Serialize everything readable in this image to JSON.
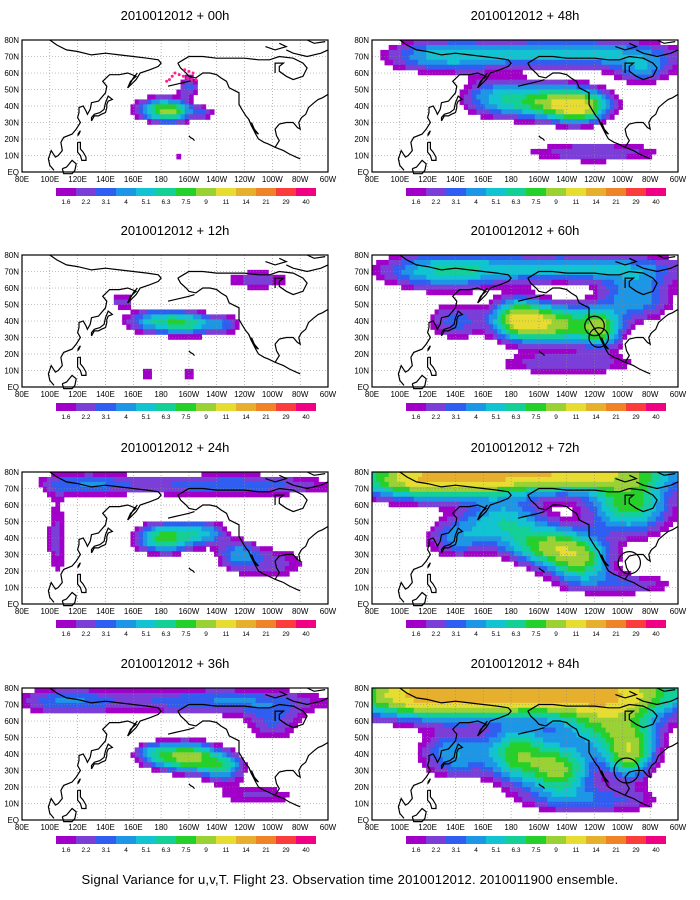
{
  "figure_caption": "Signal Variance for u,v,T. Flight 23. Observation time 2010012012. 2010011900 ensemble.",
  "palette": {
    "land_outline": "#000000",
    "grid": "#888888",
    "box": "#000000",
    "level_colors": [
      "#a000c8",
      "#7b3fd8",
      "#2f5ef0",
      "#1e96e6",
      "#12c3d2",
      "#14cf96",
      "#26d02a",
      "#9ad236",
      "#e6dc32",
      "#e6af2d",
      "#f08228",
      "#fa3c3c",
      "#f00082"
    ]
  },
  "chart_data": [
    {
      "type": "heatmap",
      "title": "2010012012 + 00h",
      "x_tick_labels": [
        "80E",
        "100E",
        "120E",
        "140E",
        "160E",
        "180",
        "160W",
        "140W",
        "120W",
        "100W",
        "80W",
        "60W"
      ],
      "y_tick_labels": [
        "EQ",
        "10N",
        "20N",
        "30N",
        "40N",
        "50N",
        "60N",
        "70N",
        "80N"
      ],
      "colorbar_labels": [
        "1.6",
        "2.2",
        "3.1",
        "4",
        "5.1",
        "6.3",
        "7.5",
        "9",
        "11",
        "14",
        "21",
        "29",
        "40"
      ],
      "grid": "dotted",
      "blobs": [
        {
          "lon": 180,
          "lat": 38,
          "slon": 13,
          "slat": 5,
          "amp": 6.5
        },
        {
          "lon": -172,
          "lat": 36,
          "slon": 9,
          "slat": 4,
          "amp": 4.5
        },
        {
          "lon": -160,
          "lat": 52,
          "slon": 6,
          "slat": 5,
          "amp": 3.2
        },
        {
          "lon": -168,
          "lat": 10,
          "slon": 2,
          "slat": 2,
          "amp": 2.2
        },
        {
          "lon": -150,
          "lat": 36,
          "slon": 6,
          "slat": 3,
          "amp": 3
        }
      ]
    },
    {
      "type": "heatmap",
      "title": "2010012012 + 48h",
      "x_tick_labels": [
        "80E",
        "100E",
        "120E",
        "140E",
        "160E",
        "180",
        "160W",
        "140W",
        "120W",
        "100W",
        "80W",
        "60W"
      ],
      "y_tick_labels": [
        "EQ",
        "10N",
        "20N",
        "30N",
        "40N",
        "50N",
        "60N",
        "70N",
        "80N"
      ],
      "colorbar_labels": [
        "1.6",
        "2.2",
        "3.1",
        "4",
        "5.1",
        "6.3",
        "7.5",
        "9",
        "11",
        "14",
        "21",
        "29",
        "40"
      ],
      "grid": "dotted",
      "blobs": [
        {
          "lon": -145,
          "lat": 42,
          "slon": 22,
          "slat": 7,
          "amp": 10
        },
        {
          "lon": -130,
          "lat": 38,
          "slon": 12,
          "slat": 6,
          "amp": 6
        },
        {
          "lon": 170,
          "lat": 45,
          "slon": 18,
          "slat": 8,
          "amp": 5
        },
        {
          "lon": -140,
          "lat": 72,
          "slon": 55,
          "slat": 6,
          "amp": 6
        },
        {
          "lon": 130,
          "lat": 70,
          "slon": 28,
          "slat": 7,
          "amp": 4.5
        },
        {
          "lon": -120,
          "lat": 12,
          "slon": 40,
          "slat": 5,
          "amp": 3
        },
        {
          "lon": -85,
          "lat": 62,
          "slon": 15,
          "slat": 6,
          "amp": 4
        }
      ]
    },
    {
      "type": "heatmap",
      "title": "2010012012 + 12h",
      "x_tick_labels": [
        "80E",
        "100E",
        "120E",
        "140E",
        "160E",
        "180",
        "160W",
        "140W",
        "120W",
        "100W",
        "80W",
        "60W"
      ],
      "y_tick_labels": [
        "EQ",
        "10N",
        "20N",
        "30N",
        "40N",
        "50N",
        "60N",
        "70N",
        "80N"
      ],
      "colorbar_labels": [
        "1.6",
        "2.2",
        "3.1",
        "4",
        "5.1",
        "6.3",
        "7.5",
        "9",
        "11",
        "14",
        "21",
        "29",
        "40"
      ],
      "grid": "dotted",
      "blobs": [
        {
          "lon": 178,
          "lat": 40,
          "slon": 16,
          "slat": 5,
          "amp": 6
        },
        {
          "lon": -160,
          "lat": 38,
          "slon": 12,
          "slat": 5,
          "amp": 5
        },
        {
          "lon": -135,
          "lat": 38,
          "slon": 10,
          "slat": 4,
          "amp": 3.5
        },
        {
          "lon": 152,
          "lat": 52,
          "slon": 6,
          "slat": 3,
          "amp": 3
        },
        {
          "lon": -110,
          "lat": 65,
          "slon": 20,
          "slat": 5,
          "amp": 2.6
        },
        {
          "lon": 170,
          "lat": 8,
          "slon": 4,
          "slat": 2,
          "amp": 2.4
        },
        {
          "lon": -160,
          "lat": 8,
          "slon": 4,
          "slat": 2,
          "amp": 2.3
        }
      ]
    },
    {
      "type": "heatmap",
      "title": "2010012012 + 60h",
      "x_tick_labels": [
        "80E",
        "100E",
        "120E",
        "140E",
        "160E",
        "180",
        "160W",
        "140W",
        "120W",
        "100W",
        "80W",
        "60W"
      ],
      "y_tick_labels": [
        "EQ",
        "10N",
        "20N",
        "30N",
        "40N",
        "50N",
        "60N",
        "70N",
        "80N"
      ],
      "colorbar_labels": [
        "1.6",
        "2.2",
        "3.1",
        "4",
        "5.1",
        "6.3",
        "7.5",
        "9",
        "11",
        "14",
        "21",
        "29",
        "40"
      ],
      "grid": "dotted",
      "blobs": [
        {
          "lon": -150,
          "lat": 38,
          "slon": 22,
          "slat": 8,
          "amp": 10
        },
        {
          "lon": -175,
          "lat": 42,
          "slon": 12,
          "slat": 8,
          "amp": 8
        },
        {
          "lon": -115,
          "lat": 35,
          "slon": 10,
          "slat": 8,
          "amp": 7
        },
        {
          "lon": -140,
          "lat": 72,
          "slon": 60,
          "slat": 6,
          "amp": 5.5
        },
        {
          "lon": 130,
          "lat": 70,
          "slon": 30,
          "slat": 8,
          "amp": 5
        },
        {
          "lon": -90,
          "lat": 55,
          "slon": 18,
          "slat": 10,
          "amp": 5
        },
        {
          "lon": 140,
          "lat": 40,
          "slon": 15,
          "slat": 8,
          "amp": 3.5
        },
        {
          "lon": -140,
          "lat": 14,
          "slon": 40,
          "slat": 5,
          "amp": 3
        }
      ]
    },
    {
      "type": "heatmap",
      "title": "2010012012 + 24h",
      "x_tick_labels": [
        "80E",
        "100E",
        "120E",
        "140E",
        "160E",
        "180",
        "160W",
        "140W",
        "120W",
        "100W",
        "80W",
        "60W"
      ],
      "y_tick_labels": [
        "EQ",
        "10N",
        "20N",
        "30N",
        "40N",
        "50N",
        "60N",
        "70N",
        "80N"
      ],
      "colorbar_labels": [
        "1.6",
        "2.2",
        "3.1",
        "4",
        "5.1",
        "6.3",
        "7.5",
        "9",
        "11",
        "14",
        "21",
        "29",
        "40"
      ],
      "grid": "dotted",
      "blobs": [
        {
          "lon": -178,
          "lat": 40,
          "slon": 14,
          "slat": 6,
          "amp": 8
        },
        {
          "lon": -150,
          "lat": 43,
          "slon": 12,
          "slat": 5,
          "amp": 5
        },
        {
          "lon": -125,
          "lat": 30,
          "slon": 10,
          "slat": 6,
          "amp": 4
        },
        {
          "lon": -130,
          "lat": 72,
          "slon": 55,
          "slat": 5,
          "amp": 4
        },
        {
          "lon": 125,
          "lat": 73,
          "slon": 25,
          "slat": 5,
          "amp": 3.5
        },
        {
          "lon": 105,
          "lat": 40,
          "slon": 6,
          "slat": 20,
          "amp": 2.6
        },
        {
          "lon": -100,
          "lat": 25,
          "slon": 20,
          "slat": 8,
          "amp": 2.6
        }
      ]
    },
    {
      "type": "heatmap",
      "title": "2010012012 + 72h",
      "x_tick_labels": [
        "80E",
        "100E",
        "120E",
        "140E",
        "160E",
        "180",
        "160W",
        "140W",
        "120W",
        "100W",
        "80W",
        "60W"
      ],
      "y_tick_labels": [
        "EQ",
        "10N",
        "20N",
        "30N",
        "40N",
        "50N",
        "60N",
        "70N",
        "80N"
      ],
      "colorbar_labels": [
        "1.6",
        "2.2",
        "3.1",
        "4",
        "5.1",
        "6.3",
        "7.5",
        "9",
        "11",
        "14",
        "21",
        "29",
        "40"
      ],
      "grid": "dotted",
      "blobs": [
        {
          "lon": -160,
          "lat": 80,
          "slon": 60,
          "slat": 8,
          "amp": 14
        },
        {
          "lon": 120,
          "lat": 75,
          "slon": 35,
          "slat": 8,
          "amp": 10
        },
        {
          "lon": -150,
          "lat": 35,
          "slon": 20,
          "slat": 8,
          "amp": 9
        },
        {
          "lon": -130,
          "lat": 25,
          "slon": 15,
          "slat": 8,
          "amp": 7
        },
        {
          "lon": -95,
          "lat": 60,
          "slon": 20,
          "slat": 12,
          "amp": 8
        },
        {
          "lon": 175,
          "lat": 50,
          "slon": 20,
          "slat": 10,
          "amp": 6
        },
        {
          "lon": 140,
          "lat": 40,
          "slon": 15,
          "slat": 8,
          "amp": 4
        },
        {
          "lon": -100,
          "lat": 12,
          "slon": 30,
          "slat": 5,
          "amp": 3
        }
      ]
    },
    {
      "type": "heatmap",
      "title": "2010012012 + 36h",
      "x_tick_labels": [
        "80E",
        "100E",
        "120E",
        "140E",
        "160E",
        "180",
        "160W",
        "140W",
        "120W",
        "100W",
        "80W",
        "60W"
      ],
      "y_tick_labels": [
        "EQ",
        "10N",
        "20N",
        "30N",
        "40N",
        "50N",
        "60N",
        "70N",
        "80N"
      ],
      "colorbar_labels": [
        "1.6",
        "2.2",
        "3.1",
        "4",
        "5.1",
        "6.3",
        "7.5",
        "9",
        "11",
        "14",
        "21",
        "29",
        "40"
      ],
      "grid": "dotted",
      "blobs": [
        {
          "lon": -160,
          "lat": 38,
          "slon": 14,
          "slat": 6,
          "amp": 10
        },
        {
          "lon": -135,
          "lat": 32,
          "slon": 10,
          "slat": 6,
          "amp": 6
        },
        {
          "lon": 175,
          "lat": 40,
          "slon": 10,
          "slat": 5,
          "amp": 5
        },
        {
          "lon": -140,
          "lat": 72,
          "slon": 60,
          "slat": 6,
          "amp": 4
        },
        {
          "lon": 110,
          "lat": 72,
          "slon": 25,
          "slat": 6,
          "amp": 3.5
        },
        {
          "lon": -100,
          "lat": 58,
          "slon": 15,
          "slat": 8,
          "amp": 3
        },
        {
          "lon": -110,
          "lat": 15,
          "slon": 25,
          "slat": 5,
          "amp": 2.4
        }
      ]
    },
    {
      "type": "heatmap",
      "title": "2010012012 + 84h",
      "x_tick_labels": [
        "80E",
        "100E",
        "120E",
        "140E",
        "160E",
        "180",
        "160W",
        "140W",
        "120W",
        "100W",
        "80W",
        "60W"
      ],
      "y_tick_labels": [
        "EQ",
        "10N",
        "20N",
        "30N",
        "40N",
        "50N",
        "60N",
        "70N",
        "80N"
      ],
      "colorbar_labels": [
        "1.6",
        "2.2",
        "3.1",
        "4",
        "5.1",
        "6.3",
        "7.5",
        "9",
        "11",
        "14",
        "21",
        "29",
        "40"
      ],
      "grid": "dotted",
      "blobs": [
        {
          "lon": -150,
          "lat": 78,
          "slon": 65,
          "slat": 9,
          "amp": 15
        },
        {
          "lon": 120,
          "lat": 75,
          "slon": 40,
          "slat": 9,
          "amp": 11
        },
        {
          "lon": -175,
          "lat": 40,
          "slon": 15,
          "slat": 12,
          "amp": 8
        },
        {
          "lon": -145,
          "lat": 30,
          "slon": 15,
          "slat": 10,
          "amp": 9
        },
        {
          "lon": -95,
          "lat": 40,
          "slon": 12,
          "slat": 10,
          "amp": 9
        },
        {
          "lon": -110,
          "lat": 60,
          "slon": 25,
          "slat": 12,
          "amp": 8
        },
        {
          "lon": 140,
          "lat": 40,
          "slon": 18,
          "slat": 10,
          "amp": 5
        },
        {
          "lon": -120,
          "lat": 12,
          "slon": 35,
          "slat": 6,
          "amp": 3.5
        }
      ]
    }
  ]
}
